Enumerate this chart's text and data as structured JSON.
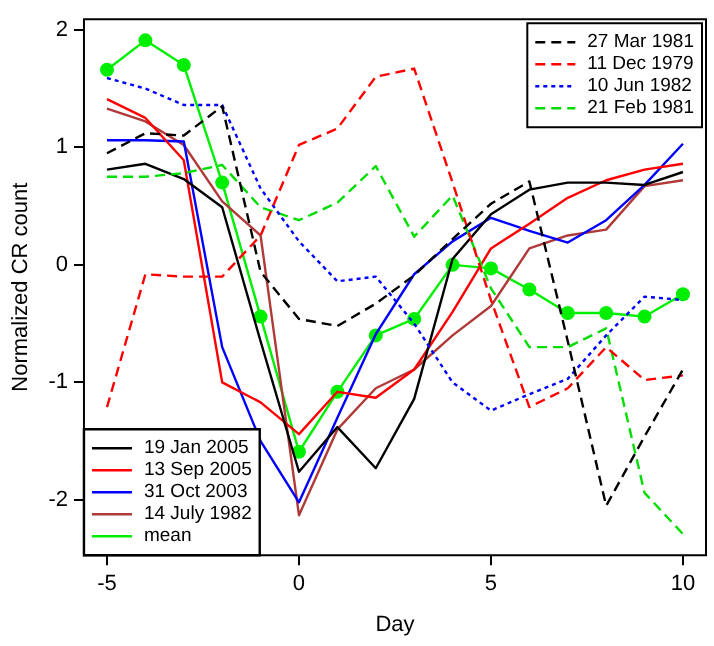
{
  "chart_data": {
    "type": "line",
    "xlabel": "Day",
    "ylabel": "Normalized CR count",
    "x": [
      -5,
      -4,
      -3,
      -2,
      -1,
      0,
      1,
      2,
      3,
      4,
      5,
      6,
      7,
      8,
      9,
      10
    ],
    "xlim": [
      -5.6,
      10.6
    ],
    "xticks": [
      -5,
      0,
      5,
      10
    ],
    "ylim": [
      -2.47,
      2.09
    ],
    "yticks": [
      -2,
      -1,
      0,
      1,
      2
    ],
    "grid": false,
    "legend": [
      "top right",
      "bottom left"
    ],
    "marker": "none",
    "series": [
      {
        "name": "27 Mar 1981",
        "color": "#000000",
        "line_style": "dashed",
        "values": [
          0.95,
          1.12,
          1.1,
          1.35,
          -0.06,
          -0.46,
          -0.52,
          -0.33,
          -0.09,
          0.22,
          0.52,
          0.71,
          -0.65,
          -2.05,
          -1.46,
          -0.89
        ]
      },
      {
        "name": "11 Dec 1979",
        "color": "#ff0000",
        "line_style": "dashed",
        "values": [
          -1.21,
          -0.08,
          -0.1,
          -0.1,
          0.25,
          1.02,
          1.16,
          1.6,
          1.67,
          0.7,
          -0.3,
          -1.21,
          -1.05,
          -0.7,
          -0.98,
          -0.94
        ]
      },
      {
        "name": "10 Jun 1982",
        "color": "#0000ff",
        "line_style": "dotted",
        "values": [
          1.59,
          1.5,
          1.36,
          1.36,
          0.65,
          0.2,
          -0.14,
          -0.1,
          -0.5,
          -1.0,
          -1.24,
          -1.1,
          -0.97,
          -0.6,
          -0.27,
          -0.3
        ]
      },
      {
        "name": "21 Feb 1981",
        "color": "#00dd00",
        "line_style": "dashed",
        "values": [
          0.75,
          0.75,
          0.78,
          0.85,
          0.49,
          0.38,
          0.53,
          0.84,
          0.24,
          0.59,
          -0.2,
          -0.7,
          -0.7,
          -0.54,
          -1.94,
          -2.29
        ]
      },
      {
        "name": "19 Jan 2005",
        "color": "#000000",
        "line_style": "solid",
        "values": [
          0.81,
          0.86,
          0.73,
          0.49,
          -0.65,
          -1.76,
          -1.38,
          -1.73,
          -1.14,
          0.05,
          0.43,
          0.64,
          0.7,
          0.7,
          0.68,
          0.79
        ]
      },
      {
        "name": "13 Sep 2005",
        "color": "#ff0000",
        "line_style": "solid",
        "values": [
          1.41,
          1.25,
          0.89,
          -1.0,
          -1.17,
          -1.44,
          -1.08,
          -1.13,
          -0.89,
          -0.4,
          0.14,
          0.35,
          0.57,
          0.72,
          0.81,
          0.86
        ]
      },
      {
        "name": "31 Oct 2003",
        "color": "#0000ff",
        "line_style": "solid",
        "values": [
          1.06,
          1.06,
          1.05,
          -0.7,
          -1.5,
          -2.02,
          -1.3,
          -0.59,
          -0.08,
          0.2,
          0.4,
          0.29,
          0.19,
          0.38,
          0.68,
          1.03
        ]
      },
      {
        "name": "14 July 1982",
        "color": "#b03a3a",
        "line_style": "solid",
        "values": [
          1.33,
          1.22,
          1.02,
          0.54,
          0.25,
          -2.13,
          -1.4,
          -1.05,
          -0.89,
          -0.6,
          -0.35,
          0.14,
          0.25,
          0.3,
          0.67,
          0.72
        ]
      },
      {
        "name": "mean",
        "color": "#00ee00",
        "line_style": "solid",
        "marker": "circle",
        "values": [
          1.66,
          1.91,
          1.7,
          0.7,
          -0.44,
          -1.59,
          -1.08,
          -0.6,
          -0.46,
          0.0,
          -0.03,
          -0.21,
          -0.41,
          -0.41,
          -0.44,
          -0.25
        ]
      }
    ]
  }
}
